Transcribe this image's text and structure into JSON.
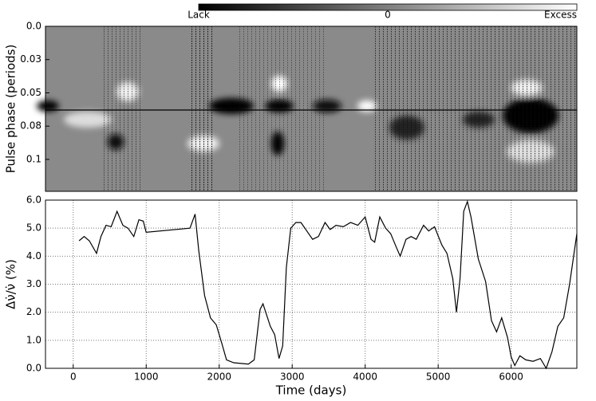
{
  "chart_data": [
    {
      "type": "heatmap",
      "ylabel": "Pulse phase (periods)",
      "ylim": [
        0,
        0.124
      ],
      "yticks": [
        {
          "value": 0,
          "label": "0.0"
        },
        {
          "value": 0.025,
          "label": "0.03"
        },
        {
          "value": 0.05,
          "label": "0.05"
        },
        {
          "value": 0.075,
          "label": "0.08"
        },
        {
          "value": 0.1,
          "label": "0.1"
        }
      ],
      "colorbar": {
        "labels": [
          "Lack",
          "0",
          "Excess"
        ]
      }
    },
    {
      "type": "line",
      "xlabel": "Time (days)",
      "ylabel": "Δν̇/ν̇ (%)",
      "xlim": [
        -380,
        6900
      ],
      "ylim": [
        0,
        6
      ],
      "xticks": [
        0,
        1000,
        2000,
        3000,
        4000,
        5000,
        6000
      ],
      "yticks": [
        {
          "value": 0,
          "label": "0.0"
        },
        {
          "value": 1,
          "label": "1.0"
        },
        {
          "value": 2,
          "label": "2.0"
        },
        {
          "value": 3,
          "label": "3.0"
        },
        {
          "value": 4,
          "label": "4.0"
        },
        {
          "value": 5,
          "label": "5.0"
        },
        {
          "value": 6,
          "label": "6.0"
        }
      ],
      "grid": true,
      "color": "#000000",
      "x": [
        80,
        150,
        220,
        320,
        380,
        450,
        520,
        600,
        680,
        750,
        830,
        900,
        960,
        1000,
        1600,
        1670,
        1720,
        1800,
        1880,
        1960,
        2040,
        2100,
        2200,
        2400,
        2480,
        2560,
        2600,
        2650,
        2700,
        2760,
        2820,
        2870,
        2920,
        2980,
        3050,
        3120,
        3200,
        3280,
        3360,
        3450,
        3520,
        3600,
        3700,
        3800,
        3900,
        4000,
        4080,
        4130,
        4200,
        4280,
        4350,
        4430,
        4480,
        4560,
        4630,
        4700,
        4800,
        4870,
        4950,
        5050,
        5120,
        5200,
        5250,
        5300,
        5350,
        5400,
        5450,
        5550,
        5650,
        5730,
        5800,
        5870,
        5950,
        6000,
        6050,
        6120,
        6200,
        6300,
        6400,
        6480,
        6560,
        6640,
        6720,
        6800,
        6900
      ],
      "values": [
        4.55,
        4.7,
        4.55,
        4.1,
        4.7,
        5.1,
        5.05,
        5.6,
        5.1,
        5.0,
        4.7,
        5.3,
        5.25,
        4.85,
        5.0,
        5.5,
        4.2,
        2.6,
        1.8,
        1.55,
        0.85,
        0.3,
        0.2,
        0.15,
        0.3,
        2.1,
        2.3,
        1.9,
        1.5,
        1.2,
        0.35,
        0.8,
        3.6,
        5.0,
        5.2,
        5.2,
        4.9,
        4.6,
        4.7,
        5.2,
        4.95,
        5.1,
        5.05,
        5.2,
        5.1,
        5.4,
        4.6,
        4.5,
        5.4,
        5.0,
        4.8,
        4.3,
        4.0,
        4.6,
        4.7,
        4.6,
        5.1,
        4.9,
        5.05,
        4.4,
        4.1,
        3.2,
        2.0,
        3.2,
        5.6,
        5.95,
        5.4,
        3.9,
        3.1,
        1.7,
        1.3,
        1.8,
        1.1,
        0.4,
        0.1,
        0.45,
        0.3,
        0.25,
        0.35,
        0.0,
        0.6,
        1.5,
        1.8,
        3.0,
        4.8
      ]
    }
  ]
}
